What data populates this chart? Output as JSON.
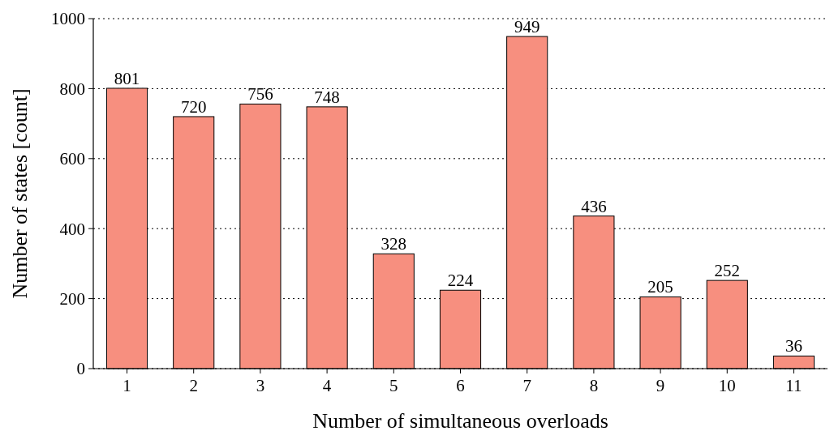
{
  "chart_data": {
    "type": "bar",
    "xlabel": "Number of simultaneous overloads",
    "ylabel": "Number of states [count]",
    "categories": [
      "1",
      "2",
      "3",
      "4",
      "5",
      "6",
      "7",
      "8",
      "9",
      "10",
      "11"
    ],
    "values": [
      801,
      720,
      756,
      748,
      328,
      224,
      949,
      436,
      205,
      252,
      36
    ],
    "color": "#f78f7f",
    "ylim": [
      0,
      1000
    ],
    "yticks": [
      0,
      200,
      400,
      600,
      800,
      1000
    ],
    "grid": "y",
    "data_labels": true
  }
}
